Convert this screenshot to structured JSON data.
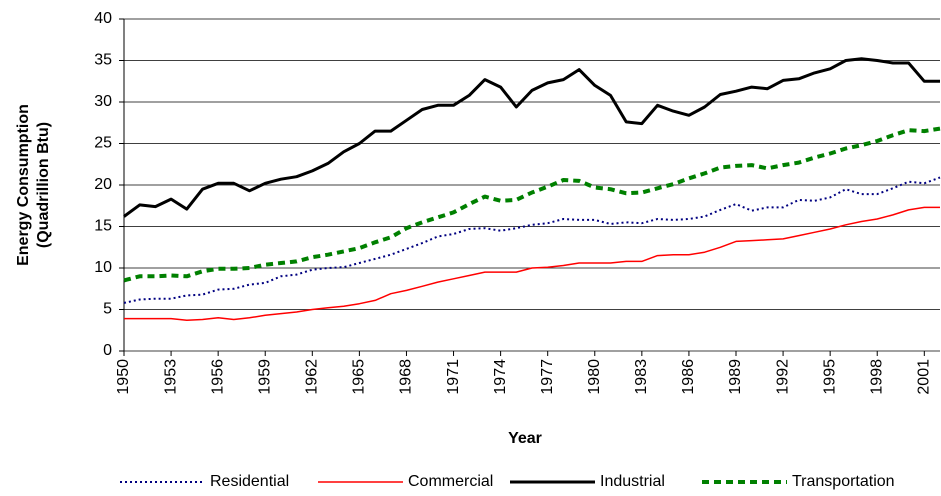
{
  "chart_data": {
    "type": "line",
    "y_label": [
      "Energy Consumption",
      "(Quadrillion Btu)"
    ],
    "x_label": "Year",
    "x": [
      1950,
      1951,
      1952,
      1953,
      1954,
      1955,
      1956,
      1957,
      1958,
      1959,
      1960,
      1961,
      1962,
      1963,
      1964,
      1965,
      1966,
      1967,
      1968,
      1969,
      1970,
      1971,
      1972,
      1973,
      1974,
      1975,
      1976,
      1977,
      1978,
      1979,
      1980,
      1981,
      1982,
      1983,
      1984,
      1985,
      1986,
      1987,
      1988,
      1989,
      1990,
      1991,
      1992,
      1993,
      1994,
      1995,
      1996,
      1997,
      1998,
      1999,
      2000,
      2001,
      2002
    ],
    "xlim": [
      1950,
      2002
    ],
    "xticks": [
      1950,
      1953,
      1956,
      1959,
      1962,
      1965,
      1968,
      1971,
      1974,
      1977,
      1980,
      1983,
      1986,
      1989,
      1992,
      1995,
      1998,
      2001
    ],
    "ylim": [
      0,
      40
    ],
    "yticks": [
      0,
      5,
      10,
      15,
      20,
      25,
      30,
      35,
      40
    ],
    "grid": true,
    "legend": "bottom",
    "series": [
      {
        "name": "Residential",
        "color": "#000080",
        "style": "dotted",
        "values": [
          5.8,
          6.2,
          6.3,
          6.3,
          6.7,
          6.8,
          7.4,
          7.5,
          8.0,
          8.2,
          9.0,
          9.2,
          9.8,
          10.0,
          10.1,
          10.6,
          11.1,
          11.6,
          12.3,
          13.0,
          13.8,
          14.1,
          14.7,
          14.8,
          14.5,
          14.8,
          15.2,
          15.4,
          15.9,
          15.8,
          15.8,
          15.3,
          15.5,
          15.4,
          15.9,
          15.8,
          15.9,
          16.2,
          17.0,
          17.7,
          16.9,
          17.3,
          17.3,
          18.2,
          18.1,
          18.5,
          19.5,
          18.9,
          18.9,
          19.6,
          20.4,
          20.2,
          20.9
        ]
      },
      {
        "name": "Commercial",
        "color": "#ff0000",
        "style": "solid",
        "values": [
          3.9,
          3.9,
          3.9,
          3.9,
          3.7,
          3.8,
          4.0,
          3.8,
          4.0,
          4.3,
          4.5,
          4.7,
          5.0,
          5.2,
          5.4,
          5.7,
          6.1,
          6.9,
          7.3,
          7.8,
          8.3,
          8.7,
          9.1,
          9.5,
          9.5,
          9.5,
          10.0,
          10.1,
          10.3,
          10.6,
          10.6,
          10.6,
          10.8,
          10.8,
          11.5,
          11.6,
          11.6,
          11.9,
          12.5,
          13.2,
          13.3,
          13.4,
          13.5,
          13.9,
          14.3,
          14.7,
          15.2,
          15.6,
          15.9,
          16.4,
          17.0,
          17.3,
          17.3
        ]
      },
      {
        "name": "Industrial",
        "color": "#000000",
        "style": "thick",
        "values": [
          16.2,
          17.6,
          17.4,
          18.3,
          17.1,
          19.5,
          20.2,
          20.2,
          19.3,
          20.2,
          20.7,
          21.0,
          21.7,
          22.6,
          24.0,
          25.0,
          26.5,
          26.5,
          27.8,
          29.1,
          29.6,
          29.6,
          30.8,
          32.7,
          31.8,
          29.4,
          31.4,
          32.3,
          32.7,
          33.9,
          32.0,
          30.8,
          27.6,
          27.4,
          29.6,
          28.9,
          28.4,
          29.4,
          30.9,
          31.3,
          31.8,
          31.6,
          32.6,
          32.8,
          33.5,
          34.0,
          35.0,
          35.2,
          35.0,
          34.7,
          34.7,
          32.5,
          32.5
        ]
      },
      {
        "name": "Transportation",
        "color": "#008000",
        "style": "dashed",
        "values": [
          8.5,
          9.0,
          9.0,
          9.1,
          9.0,
          9.6,
          9.9,
          9.9,
          10.0,
          10.4,
          10.6,
          10.8,
          11.3,
          11.6,
          12.0,
          12.4,
          13.1,
          13.7,
          14.8,
          15.5,
          16.1,
          16.7,
          17.7,
          18.6,
          18.1,
          18.2,
          19.1,
          19.8,
          20.6,
          20.5,
          19.7,
          19.5,
          19.0,
          19.1,
          19.6,
          20.1,
          20.8,
          21.4,
          22.1,
          22.3,
          22.4,
          22.0,
          22.4,
          22.7,
          23.3,
          23.8,
          24.4,
          24.8,
          25.3,
          26.0,
          26.6,
          26.5,
          26.8
        ]
      }
    ]
  }
}
